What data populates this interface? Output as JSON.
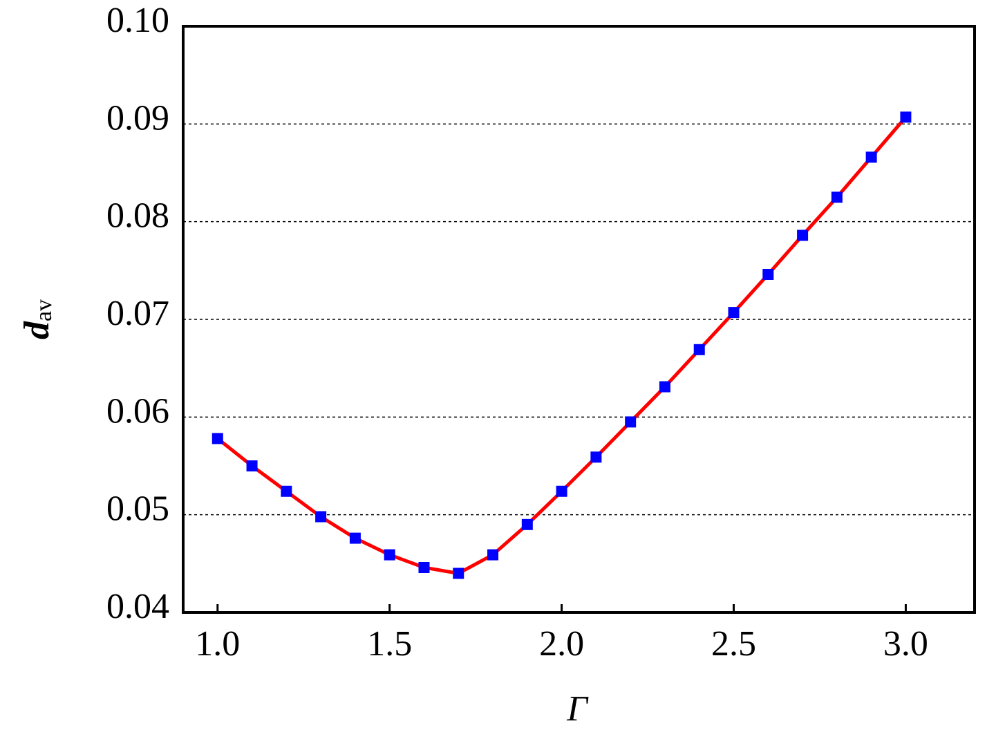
{
  "chart_data": {
    "type": "line",
    "xlabel": "Γ",
    "ylabel": "d",
    "ylabel_subscript": "av",
    "x": [
      1.0,
      1.1,
      1.2,
      1.3,
      1.4,
      1.5,
      1.6,
      1.7,
      1.8,
      1.9,
      2.0,
      2.1,
      2.2,
      2.3,
      2.4,
      2.5,
      2.6,
      2.7,
      2.8,
      2.9,
      3.0
    ],
    "series": [
      {
        "color": "#ff0000",
        "marker_color": "#0000ff",
        "values": [
          0.0578,
          0.055,
          0.0524,
          0.0498,
          0.0476,
          0.0459,
          0.0446,
          0.044,
          0.0459,
          0.049,
          0.0524,
          0.0559,
          0.0595,
          0.0631,
          0.0669,
          0.0707,
          0.0746,
          0.0786,
          0.0825,
          0.0866,
          0.0907
        ]
      }
    ],
    "xlim": [
      0.9,
      3.2
    ],
    "xticks": [
      {
        "value": 1,
        "label": "1.0"
      },
      1.5,
      {
        "value": 2,
        "label": "2.0"
      },
      2.5,
      {
        "value": 3,
        "label": "3.0"
      }
    ],
    "ylim": [
      0.04,
      0.1
    ],
    "yticks": [
      0.04,
      0.05,
      0.06,
      0.07,
      0.08,
      0.09,
      {
        "value": 0.1,
        "label": "0.10"
      }
    ],
    "grid": true
  }
}
